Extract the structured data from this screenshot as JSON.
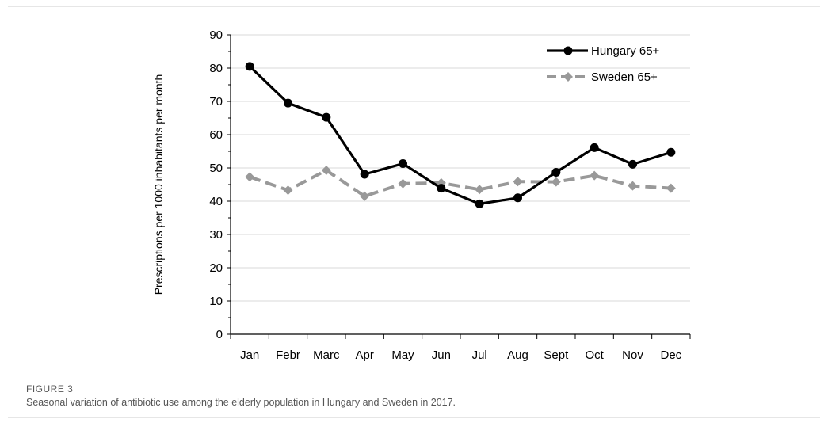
{
  "figure": {
    "label": "FIGURE 3",
    "caption": "Seasonal variation of antibiotic use among the elderly population in Hungary and Sweden in 2017."
  },
  "chart_data": {
    "type": "line",
    "title": "",
    "xlabel": "",
    "ylabel": "Prescriptions per 1000 inhabitants per month",
    "categories": [
      "Jan",
      "Febr",
      "Marc",
      "Apr",
      "May",
      "Jun",
      "Jul",
      "Aug",
      "Sept",
      "Oct",
      "Nov",
      "Dec"
    ],
    "ylim": [
      0,
      90
    ],
    "yticks": [
      0,
      10,
      20,
      30,
      40,
      50,
      60,
      70,
      80,
      90
    ],
    "grid": "horizontal",
    "legend_position": "top-right",
    "series": [
      {
        "name": "Hungary  65+",
        "color": "#000000",
        "style": "solid",
        "values": [
          80.5,
          69.5,
          65.2,
          48.1,
          51.3,
          43.9,
          39.2,
          41.0,
          48.7,
          56.1,
          51.1,
          54.7
        ]
      },
      {
        "name": "Sweden  65+",
        "color": "#999999",
        "style": "dashed",
        "values": [
          47.3,
          43.3,
          49.3,
          41.5,
          45.3,
          45.5,
          43.5,
          45.9,
          45.8,
          47.7,
          44.6,
          43.9
        ]
      }
    ]
  }
}
